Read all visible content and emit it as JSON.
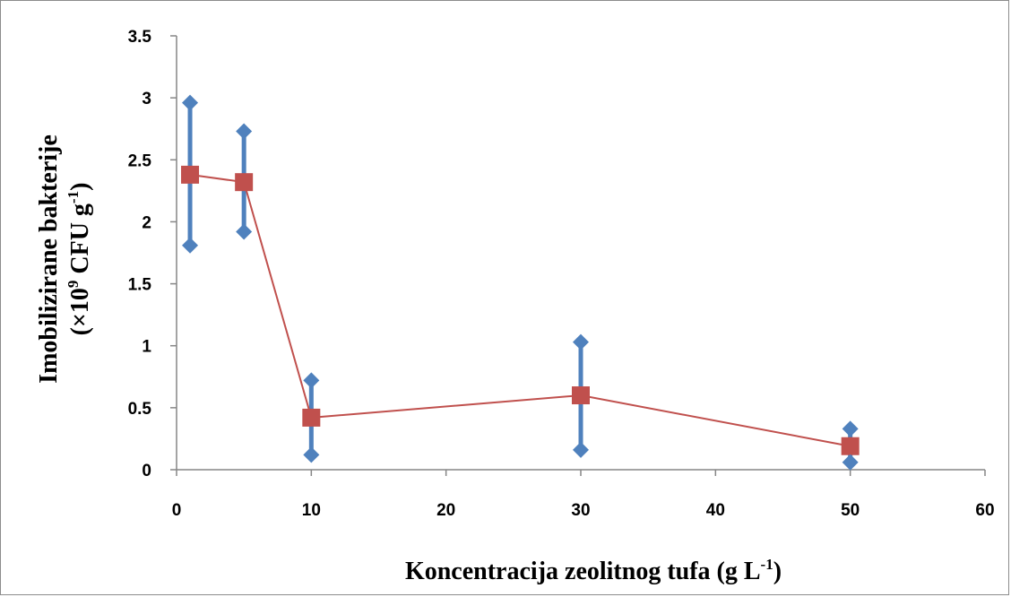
{
  "chart_data": {
    "type": "line",
    "title": "",
    "xlabel": "Koncentracija zeolitnog tufa (g L",
    "xlabel_sup": "-1",
    "xlabel_close": ")",
    "ylabel_line1": "Imobilizirane bakterije",
    "ylabel_line2_pre": "(×10",
    "ylabel_line2_sup1": "9",
    "ylabel_line2_mid": " CFU g",
    "ylabel_line2_sup2": "-1",
    "ylabel_line2_close": ")",
    "xlim": [
      0,
      60
    ],
    "ylim": [
      0,
      3.5
    ],
    "x_ticks": [
      "0",
      "10",
      "20",
      "30",
      "40",
      "50",
      "60"
    ],
    "y_ticks": [
      "0",
      "0.5",
      "1",
      "1.5",
      "2",
      "2.5",
      "3",
      "3.5"
    ],
    "grid": false,
    "legend": "none",
    "series": [
      {
        "marker": "square",
        "color": "#C0504D",
        "x": [
          1,
          5,
          10,
          30,
          50
        ],
        "y": [
          2.38,
          2.32,
          0.42,
          0.6,
          0.19
        ]
      }
    ],
    "range_markers": {
      "marker": "diamond",
      "color": "#4F81BD",
      "x": [
        1,
        5,
        10,
        30,
        50
      ],
      "high": [
        2.96,
        2.73,
        0.72,
        1.03,
        0.33
      ],
      "low": [
        1.81,
        1.92,
        0.12,
        0.16,
        0.06
      ]
    }
  }
}
